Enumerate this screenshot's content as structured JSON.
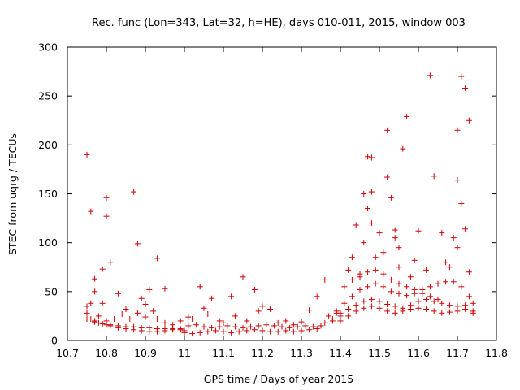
{
  "chart_data": {
    "type": "scatter",
    "title": "Rec. func (Lon=343, Lat=32, h=HE), days 010-011, 2015, window 003",
    "xlabel": "GPS time / Days of year 2015",
    "ylabel": "STEC from uqrg / TECUs",
    "xlim": [
      10.7,
      11.8
    ],
    "ylim": [
      0,
      300
    ],
    "xticks": [
      "10.7",
      "10.8",
      "10.9",
      "11",
      "11.1",
      "11.2",
      "11.3",
      "11.4",
      "11.5",
      "11.6",
      "11.7",
      "11.8"
    ],
    "yticks": [
      "0",
      "50",
      "100",
      "150",
      "200",
      "250",
      "300"
    ],
    "marker": "+",
    "color": "#cc0000",
    "grid": false,
    "series": [
      {
        "name": "STEC",
        "points": [
          [
            10.75,
            190
          ],
          [
            10.76,
            132
          ],
          [
            10.8,
            146
          ],
          [
            10.8,
            127
          ],
          [
            10.81,
            80
          ],
          [
            10.79,
            73
          ],
          [
            10.77,
            63
          ],
          [
            10.83,
            48
          ],
          [
            10.87,
            152
          ],
          [
            10.88,
            99
          ],
          [
            10.93,
            84
          ],
          [
            10.91,
            52
          ],
          [
            10.95,
            53
          ],
          [
            10.89,
            43
          ],
          [
            10.9,
            37
          ],
          [
            10.77,
            50
          ],
          [
            10.75,
            35
          ],
          [
            10.76,
            38
          ],
          [
            10.78,
            25
          ],
          [
            10.8,
            20
          ],
          [
            10.82,
            22
          ],
          [
            10.84,
            27
          ],
          [
            10.85,
            32
          ],
          [
            10.86,
            22
          ],
          [
            10.88,
            28
          ],
          [
            10.9,
            24
          ],
          [
            10.92,
            30
          ],
          [
            10.93,
            22
          ],
          [
            10.95,
            18
          ],
          [
            10.97,
            16
          ],
          [
            10.99,
            20
          ],
          [
            10.79,
            38
          ],
          [
            10.75,
            28
          ],
          [
            10.76,
            22
          ],
          [
            10.77,
            20
          ],
          [
            10.78,
            18
          ],
          [
            10.8,
            16
          ],
          [
            10.81,
            15
          ],
          [
            10.83,
            13
          ],
          [
            10.85,
            12
          ],
          [
            10.87,
            11
          ],
          [
            10.89,
            10
          ],
          [
            10.91,
            9
          ],
          [
            10.93,
            9
          ],
          [
            10.95,
            10
          ],
          [
            10.97,
            11
          ],
          [
            10.99,
            12
          ],
          [
            10.75,
            22
          ],
          [
            10.77,
            19
          ],
          [
            10.79,
            17
          ],
          [
            10.81,
            16
          ],
          [
            10.83,
            15
          ],
          [
            10.85,
            14
          ],
          [
            10.87,
            14
          ],
          [
            10.89,
            13
          ],
          [
            10.91,
            13
          ],
          [
            10.93,
            12
          ],
          [
            10.95,
            12
          ],
          [
            10.97,
            12
          ],
          [
            10.99,
            11
          ],
          [
            11.0,
            10
          ],
          [
            11.01,
            24
          ],
          [
            11.02,
            22
          ],
          [
            11.04,
            55
          ],
          [
            11.05,
            33
          ],
          [
            11.06,
            27
          ],
          [
            11.07,
            43
          ],
          [
            11.09,
            20
          ],
          [
            11.1,
            18
          ],
          [
            11.12,
            45
          ],
          [
            11.13,
            25
          ],
          [
            11.15,
            65
          ],
          [
            11.16,
            20
          ],
          [
            11.18,
            52
          ],
          [
            11.19,
            30
          ],
          [
            11.2,
            35
          ],
          [
            11.22,
            32
          ],
          [
            11.24,
            18
          ],
          [
            11.26,
            20
          ],
          [
            11.28,
            16
          ],
          [
            11.3,
            19
          ],
          [
            11.32,
            31
          ],
          [
            11.34,
            45
          ],
          [
            11.0,
            8
          ],
          [
            11.02,
            7
          ],
          [
            11.04,
            8
          ],
          [
            11.06,
            9
          ],
          [
            11.08,
            10
          ],
          [
            11.1,
            9
          ],
          [
            11.12,
            8
          ],
          [
            11.14,
            9
          ],
          [
            11.16,
            10
          ],
          [
            11.18,
            11
          ],
          [
            11.2,
            10
          ],
          [
            11.22,
            9
          ],
          [
            11.24,
            9
          ],
          [
            11.26,
            10
          ],
          [
            11.28,
            9
          ],
          [
            11.3,
            10
          ],
          [
            11.32,
            11
          ],
          [
            11.34,
            12
          ],
          [
            11.01,
            15
          ],
          [
            11.03,
            16
          ],
          [
            11.05,
            14
          ],
          [
            11.07,
            13
          ],
          [
            11.09,
            14
          ],
          [
            11.11,
            15
          ],
          [
            11.13,
            14
          ],
          [
            11.15,
            13
          ],
          [
            11.17,
            14
          ],
          [
            11.19,
            15
          ],
          [
            11.21,
            16
          ],
          [
            11.23,
            15
          ],
          [
            11.25,
            14
          ],
          [
            11.27,
            13
          ],
          [
            11.29,
            14
          ],
          [
            11.31,
            15
          ],
          [
            11.33,
            14
          ],
          [
            11.35,
            15
          ],
          [
            11.36,
            62
          ],
          [
            11.38,
            20
          ],
          [
            11.39,
            28
          ],
          [
            11.4,
            25
          ],
          [
            11.41,
            55
          ],
          [
            11.42,
            72
          ],
          [
            11.43,
            85
          ],
          [
            11.44,
            118
          ],
          [
            11.45,
            65
          ],
          [
            11.46,
            100
          ],
          [
            11.46,
            150
          ],
          [
            11.47,
            188
          ],
          [
            11.48,
            187
          ],
          [
            11.48,
            152
          ],
          [
            11.48,
            120
          ],
          [
            11.47,
            135
          ],
          [
            11.49,
            85
          ],
          [
            11.5,
            110
          ],
          [
            11.51,
            90
          ],
          [
            11.52,
            215
          ],
          [
            11.52,
            167
          ],
          [
            11.53,
            146
          ],
          [
            11.54,
            113
          ],
          [
            11.54,
            105
          ],
          [
            11.55,
            95
          ],
          [
            11.55,
            75
          ],
          [
            11.56,
            196
          ],
          [
            11.57,
            229
          ],
          [
            11.58,
            65
          ],
          [
            11.59,
            82
          ],
          [
            11.6,
            112
          ],
          [
            11.62,
            72
          ],
          [
            11.63,
            271
          ],
          [
            11.64,
            168
          ],
          [
            11.66,
            110
          ],
          [
            11.67,
            80
          ],
          [
            11.68,
            75
          ],
          [
            11.69,
            105
          ],
          [
            11.7,
            164
          ],
          [
            11.7,
            215
          ],
          [
            11.71,
            270
          ],
          [
            11.71,
            140
          ],
          [
            11.72,
            258
          ],
          [
            11.72,
            114
          ],
          [
            11.73,
            225
          ],
          [
            11.73,
            70
          ],
          [
            11.7,
            95
          ],
          [
            11.36,
            18
          ],
          [
            11.38,
            22
          ],
          [
            11.4,
            28
          ],
          [
            11.42,
            32
          ],
          [
            11.44,
            36
          ],
          [
            11.46,
            40
          ],
          [
            11.48,
            42
          ],
          [
            11.5,
            40
          ],
          [
            11.52,
            37
          ],
          [
            11.54,
            35
          ],
          [
            11.56,
            33
          ],
          [
            11.58,
            36
          ],
          [
            11.6,
            40
          ],
          [
            11.62,
            42
          ],
          [
            11.64,
            40
          ],
          [
            11.66,
            38
          ],
          [
            11.68,
            36
          ],
          [
            11.7,
            35
          ],
          [
            11.72,
            36
          ],
          [
            11.74,
            38
          ],
          [
            11.37,
            25
          ],
          [
            11.39,
            30
          ],
          [
            11.41,
            38
          ],
          [
            11.43,
            45
          ],
          [
            11.45,
            52
          ],
          [
            11.47,
            55
          ],
          [
            11.49,
            58
          ],
          [
            11.51,
            55
          ],
          [
            11.53,
            50
          ],
          [
            11.55,
            48
          ],
          [
            11.57,
            46
          ],
          [
            11.59,
            48
          ],
          [
            11.61,
            52
          ],
          [
            11.63,
            55
          ],
          [
            11.65,
            58
          ],
          [
            11.67,
            60
          ],
          [
            11.69,
            60
          ],
          [
            11.71,
            55
          ],
          [
            11.73,
            45
          ],
          [
            11.74,
            30
          ],
          [
            11.4,
            20
          ],
          [
            11.42,
            25
          ],
          [
            11.44,
            30
          ],
          [
            11.46,
            33
          ],
          [
            11.48,
            35
          ],
          [
            11.5,
            33
          ],
          [
            11.52,
            30
          ],
          [
            11.54,
            28
          ],
          [
            11.56,
            30
          ],
          [
            11.58,
            32
          ],
          [
            11.6,
            33
          ],
          [
            11.62,
            32
          ],
          [
            11.64,
            30
          ],
          [
            11.66,
            28
          ],
          [
            11.68,
            29
          ],
          [
            11.7,
            30
          ],
          [
            11.72,
            32
          ],
          [
            11.74,
            28
          ],
          [
            11.43,
            62
          ],
          [
            11.45,
            68
          ],
          [
            11.47,
            70
          ],
          [
            11.49,
            72
          ],
          [
            11.51,
            68
          ],
          [
            11.53,
            62
          ],
          [
            11.55,
            58
          ],
          [
            11.57,
            55
          ],
          [
            11.59,
            52
          ],
          [
            11.61,
            48
          ],
          [
            11.63,
            45
          ],
          [
            11.65,
            42
          ]
        ]
      }
    ]
  }
}
